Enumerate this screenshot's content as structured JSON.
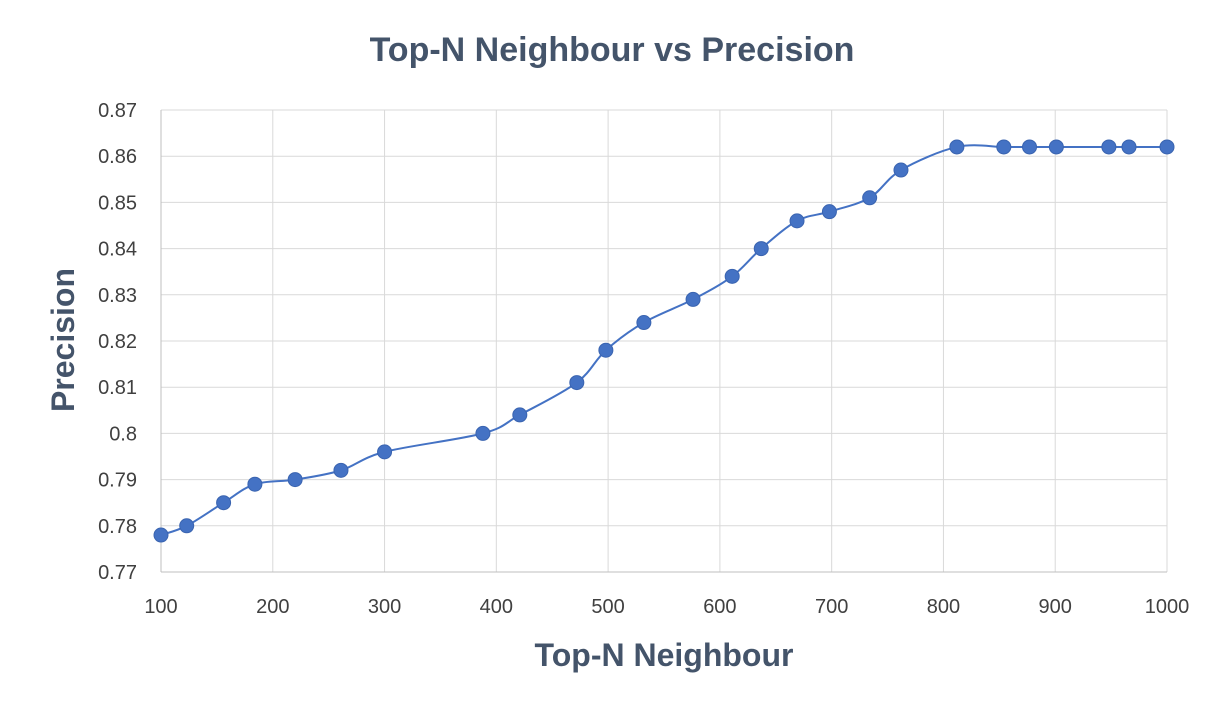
{
  "chart_data": {
    "type": "scatter",
    "title": "Top-N Neighbour vs Precision",
    "xlabel": "Top-N Neighbour",
    "ylabel": "Precision",
    "xlim": [
      100,
      1000
    ],
    "ylim": [
      0.77,
      0.87
    ],
    "x_ticks": [
      "100",
      "200",
      "300",
      "400",
      "500",
      "600",
      "700",
      "800",
      "900",
      "1000"
    ],
    "y_ticks": [
      "0.77",
      "0.78",
      "0.79",
      "0.8",
      "0.81",
      "0.82",
      "0.83",
      "0.84",
      "0.85",
      "0.86",
      "0.87"
    ],
    "grid": true,
    "legend": "none",
    "line_style": "smooth",
    "series": [
      {
        "color": "#4472c4",
        "points": [
          {
            "x": 100,
            "y": 0.778
          },
          {
            "x": 123,
            "y": 0.78
          },
          {
            "x": 156,
            "y": 0.785
          },
          {
            "x": 184,
            "y": 0.789
          },
          {
            "x": 220,
            "y": 0.79
          },
          {
            "x": 261,
            "y": 0.792
          },
          {
            "x": 300,
            "y": 0.796
          },
          {
            "x": 388,
            "y": 0.8
          },
          {
            "x": 421,
            "y": 0.804
          },
          {
            "x": 472,
            "y": 0.811
          },
          {
            "x": 498,
            "y": 0.818
          },
          {
            "x": 532,
            "y": 0.824
          },
          {
            "x": 576,
            "y": 0.829
          },
          {
            "x": 611,
            "y": 0.834
          },
          {
            "x": 637,
            "y": 0.84
          },
          {
            "x": 669,
            "y": 0.846
          },
          {
            "x": 698,
            "y": 0.848
          },
          {
            "x": 734,
            "y": 0.851
          },
          {
            "x": 762,
            "y": 0.857
          },
          {
            "x": 812,
            "y": 0.862
          },
          {
            "x": 854,
            "y": 0.862
          },
          {
            "x": 877,
            "y": 0.862
          },
          {
            "x": 901,
            "y": 0.862
          },
          {
            "x": 948,
            "y": 0.862
          },
          {
            "x": 966,
            "y": 0.862
          },
          {
            "x": 1000,
            "y": 0.862
          }
        ]
      }
    ]
  }
}
